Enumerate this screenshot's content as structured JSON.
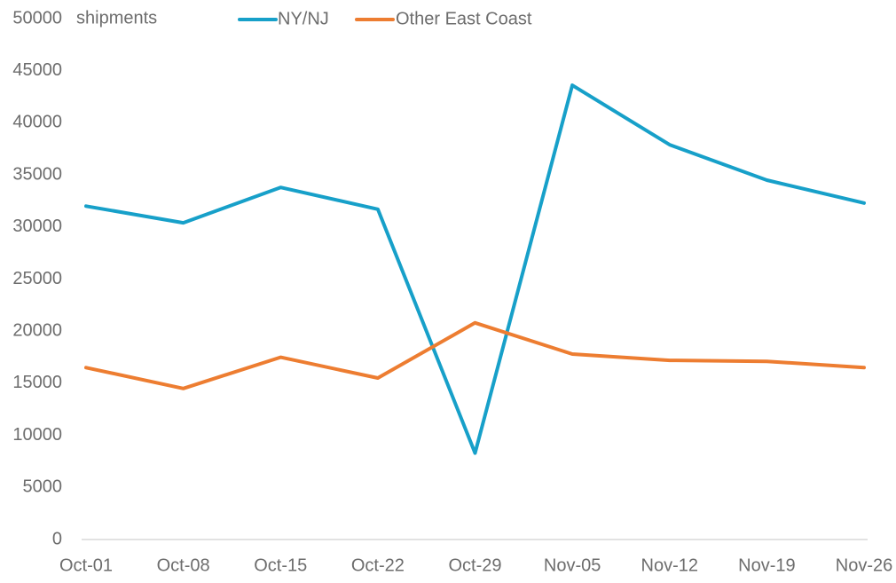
{
  "chart_data": {
    "type": "line",
    "title": "",
    "xlabel": "",
    "ylabel": "",
    "unit_label": "shipments",
    "categories": [
      "Oct-01",
      "Oct-08",
      "Oct-15",
      "Oct-22",
      "Oct-29",
      "Nov-05",
      "Nov-12",
      "Nov-19",
      "Nov-26"
    ],
    "series": [
      {
        "name": "NY/NJ",
        "color": "#17a0c9",
        "values": [
          32000,
          30400,
          33800,
          31700,
          8300,
          43600,
          37900,
          34500,
          32300
        ]
      },
      {
        "name": "Other East Coast",
        "color": "#ed7d31",
        "values": [
          16500,
          14500,
          17500,
          15500,
          20800,
          17800,
          17200,
          17100,
          16500
        ]
      }
    ],
    "ylim": [
      0,
      50000
    ],
    "yticks": [
      0,
      5000,
      10000,
      15000,
      20000,
      25000,
      30000,
      35000,
      40000,
      45000,
      50000
    ],
    "grid": false,
    "legend_position": "top"
  }
}
